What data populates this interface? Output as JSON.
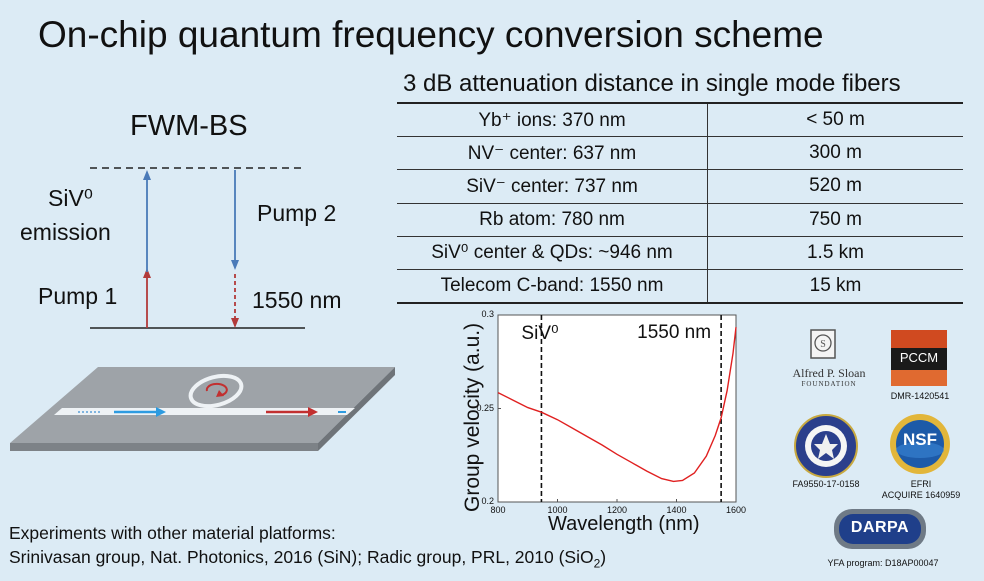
{
  "slide": {
    "title": "On-chip quantum frequency conversion scheme"
  },
  "scheme": {
    "title": "FWM-BS",
    "siv_emission_line1": "SiV⁰",
    "siv_emission_line2": "emission",
    "pump1": "Pump 1",
    "pump2": "Pump 2",
    "wavelength": "1550 nm",
    "colors": {
      "blue": "#4a7ab8",
      "red": "#b23a3a"
    }
  },
  "table": {
    "title": "3 dB attenuation distance in single mode fibers",
    "rows": [
      {
        "source": "Yb⁺ ions: 370 nm",
        "distance": "< 50 m"
      },
      {
        "source": "NV⁻ center: 637 nm",
        "distance": "300 m"
      },
      {
        "source": "SiV⁻ center: 737 nm",
        "distance": "520 m"
      },
      {
        "source": "Rb atom: 780 nm",
        "distance": "750 m"
      },
      {
        "source": "SiV⁰ center & QDs: ~946 nm",
        "distance": "1.5 km"
      },
      {
        "source": "Telecom C-band: 1550 nm",
        "distance": "15 km"
      }
    ]
  },
  "chart_data": {
    "type": "line",
    "xlabel": "Wavelength (nm)",
    "ylabel": "Group velocity (a.u.)",
    "xlim": [
      800,
      1600
    ],
    "ylim": [
      0.2,
      0.3
    ],
    "xticks": [
      "800",
      "1000",
      "1200",
      "1400",
      "1600"
    ],
    "yticks": [
      "0.2",
      "0.25",
      "0.3"
    ],
    "series": [
      {
        "color": "#e02020",
        "x": [
          800,
          850,
          900,
          946,
          1000,
          1050,
          1100,
          1150,
          1200,
          1250,
          1300,
          1350,
          1390,
          1420,
          1460,
          1500,
          1530,
          1550,
          1570,
          1590,
          1600
        ],
        "y": [
          0.2585,
          0.2545,
          0.2505,
          0.248,
          0.244,
          0.2395,
          0.235,
          0.2305,
          0.2255,
          0.221,
          0.2165,
          0.2125,
          0.211,
          0.2115,
          0.2155,
          0.2245,
          0.2355,
          0.245,
          0.2595,
          0.2795,
          0.2935
        ]
      }
    ],
    "markers": [
      {
        "x": 946,
        "label": "SiV⁰"
      },
      {
        "x": 1550,
        "label": "1550 nm"
      }
    ]
  },
  "logos": {
    "sloan_line1": "Alfred P. Sloan",
    "sloan_line2": "FOUNDATION",
    "pccm": "PCCM",
    "pccm_grant": "DMR-1420541",
    "afosr_grant": "FA9550-17-0158",
    "nsf": "NSF",
    "nsf_grant_line1": "EFRI",
    "nsf_grant_line2": "ACQUIRE 1640959",
    "darpa": "DARPA",
    "darpa_grant": "YFA program: D18AP00047"
  },
  "footer": {
    "line1": "Experiments with other material platforms:",
    "line2_part1": "Srinivasan group, Nat. Photonics, 2016 (SiN); Radic group, PRL, 2010 (SiO",
    "line2_sub": "2",
    "line2_part2": ")"
  }
}
